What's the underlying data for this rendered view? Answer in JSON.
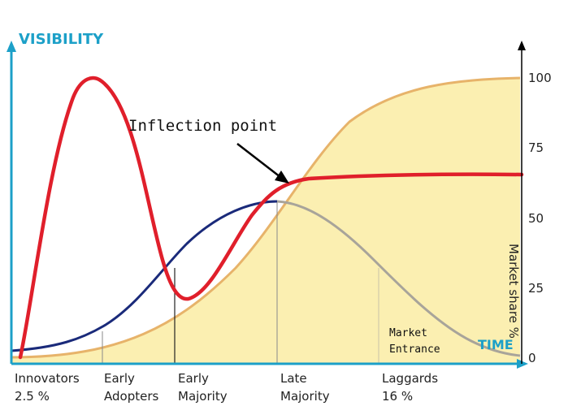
{
  "chart_data": {
    "type": "line",
    "y_axis_label": "VISIBILITY",
    "x_axis_label": "TIME",
    "right_axis_label": "Market share %",
    "right_axis_ticks": [
      "100",
      "75",
      "50",
      "25",
      "0"
    ],
    "right_axis_range": [
      0,
      100
    ],
    "annotations": {
      "inflection": "Inflection point",
      "market_entrance_line1": "Market",
      "market_entrance_line2": "Entrance"
    },
    "segments": [
      {
        "line1": "Innovators",
        "line2": "2.5 %"
      },
      {
        "line1": "Early",
        "line2": "Adopters"
      },
      {
        "line1": "Early",
        "line2": "Majority"
      },
      {
        "line1": "Late",
        "line2": "Majority"
      },
      {
        "line1": "Laggards",
        "line2": "16 %"
      }
    ],
    "colors": {
      "axis": "#1ca0c8",
      "hype_curve": "#e01f2b",
      "adoption_bell": "#1a2a7a",
      "adoption_bell_tail": "#a8a49a",
      "market_share_fill": "#fbefb1",
      "market_share_edge": "#e7b36a"
    }
  }
}
